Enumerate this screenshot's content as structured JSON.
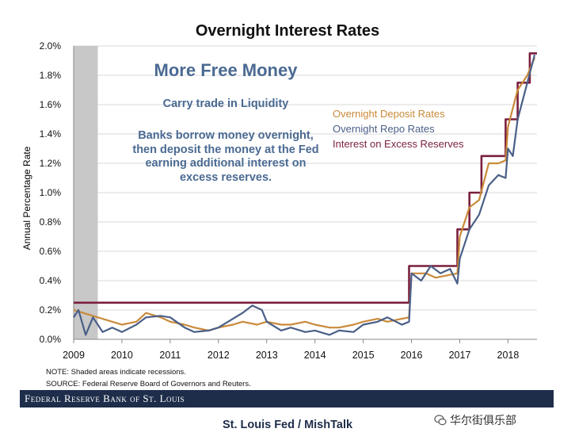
{
  "chart_data": {
    "type": "line",
    "title": "Overnight Interest Rates",
    "ylabel": "Annual Percentage Rate",
    "xlabel": "",
    "ylim": [
      0,
      2.0
    ],
    "xlim": [
      2009,
      2018.6
    ],
    "yticks": [
      "0.0%",
      "0.2%",
      "0.4%",
      "0.6%",
      "0.8%",
      "1.0%",
      "1.2%",
      "1.4%",
      "1.6%",
      "1.8%",
      "2.0%"
    ],
    "xticks": [
      "2009",
      "2010",
      "2011",
      "2012",
      "2013",
      "2014",
      "2015",
      "2016",
      "2017",
      "2018"
    ],
    "grid": true,
    "legend_position": "top-right",
    "recession_shading": [
      2009,
      2009.5
    ],
    "series": [
      {
        "name": "Overnight Deposit Rates",
        "color": "#c98a3a",
        "x": [
          2009,
          2009.2,
          2009.5,
          2009.8,
          2010,
          2010.3,
          2010.5,
          2010.8,
          2011,
          2011.3,
          2011.5,
          2011.8,
          2012,
          2012.3,
          2012.5,
          2012.8,
          2013,
          2013.3,
          2013.5,
          2013.8,
          2014,
          2014.3,
          2014.5,
          2014.8,
          2015,
          2015.3,
          2015.5,
          2015.8,
          2015.95,
          2016,
          2016.3,
          2016.5,
          2016.8,
          2016.95,
          2017,
          2017.2,
          2017.4,
          2017.6,
          2017.8,
          2017.95,
          2018,
          2018.2,
          2018.4,
          2018.55
        ],
        "y": [
          0.2,
          0.18,
          0.15,
          0.12,
          0.1,
          0.12,
          0.18,
          0.15,
          0.12,
          0.1,
          0.08,
          0.06,
          0.08,
          0.1,
          0.12,
          0.1,
          0.12,
          0.1,
          0.1,
          0.12,
          0.1,
          0.08,
          0.08,
          0.1,
          0.12,
          0.14,
          0.12,
          0.14,
          0.15,
          0.45,
          0.45,
          0.42,
          0.44,
          0.45,
          0.7,
          0.9,
          0.95,
          1.2,
          1.2,
          1.22,
          1.45,
          1.7,
          1.8,
          1.92
        ]
      },
      {
        "name": "Overnight Repo Rates",
        "color": "#4a5f87",
        "x": [
          2009,
          2009.1,
          2009.25,
          2009.4,
          2009.6,
          2009.8,
          2010,
          2010.3,
          2010.5,
          2010.8,
          2011,
          2011.3,
          2011.5,
          2011.8,
          2012,
          2012.3,
          2012.5,
          2012.7,
          2012.9,
          2013,
          2013.3,
          2013.5,
          2013.8,
          2014,
          2014.3,
          2014.5,
          2014.8,
          2015,
          2015.3,
          2015.5,
          2015.8,
          2015.95,
          2016,
          2016.2,
          2016.4,
          2016.6,
          2016.8,
          2016.95,
          2017,
          2017.2,
          2017.4,
          2017.6,
          2017.8,
          2017.95,
          2018,
          2018.1,
          2018.2,
          2018.4,
          2018.55
        ],
        "y": [
          0.15,
          0.2,
          0.03,
          0.15,
          0.05,
          0.08,
          0.05,
          0.1,
          0.15,
          0.16,
          0.15,
          0.08,
          0.05,
          0.06,
          0.08,
          0.14,
          0.18,
          0.23,
          0.2,
          0.12,
          0.06,
          0.08,
          0.05,
          0.06,
          0.03,
          0.06,
          0.05,
          0.1,
          0.12,
          0.15,
          0.1,
          0.12,
          0.45,
          0.4,
          0.5,
          0.45,
          0.48,
          0.38,
          0.55,
          0.75,
          0.85,
          1.05,
          1.12,
          1.1,
          1.3,
          1.25,
          1.5,
          1.75,
          1.94
        ]
      },
      {
        "name": "Interest on Excess Reserves",
        "color": "#7a1f3d",
        "x": [
          2009,
          2015.95,
          2015.95,
          2016.95,
          2016.95,
          2017.2,
          2017.2,
          2017.45,
          2017.45,
          2017.95,
          2017.95,
          2018.2,
          2018.2,
          2018.45,
          2018.45,
          2018.6
        ],
        "y": [
          0.25,
          0.25,
          0.5,
          0.5,
          0.75,
          0.75,
          1.0,
          1.0,
          1.25,
          1.25,
          1.5,
          1.5,
          1.75,
          1.75,
          1.95,
          1.95
        ]
      }
    ]
  },
  "annotation": {
    "title": "More Free Money",
    "subtitle": "Carry trade in Liquidity",
    "body": "Banks borrow money overnight, then deposit the money at the Fed earning additional interest on excess reserves."
  },
  "notes": [
    "NOTE: Shaded areas indicate recessions.",
    "SOURCE: Federal Reserve Board of Governors and Reuters."
  ],
  "source_bar": "Federal Reserve Bank of St. Louis",
  "credit": "St. Louis Fed / MishTalk",
  "watermark": "华尔街俱乐部"
}
